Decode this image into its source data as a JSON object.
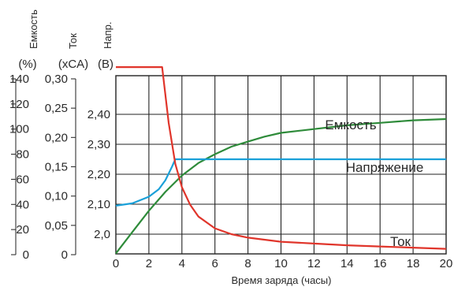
{
  "chart_data": {
    "type": "line",
    "xlabel": "Время заряда (часы)",
    "x_ticks": [
      0,
      2,
      4,
      6,
      8,
      10,
      12,
      14,
      16,
      18,
      20
    ],
    "xlim": [
      0,
      20
    ],
    "grid": true,
    "axes": {
      "capacity": {
        "title": "Емкость",
        "unit": "(%)",
        "ticks": [
          "0",
          "20",
          "40",
          "60",
          "80",
          "100",
          "120",
          "140"
        ],
        "range": [
          0,
          140
        ]
      },
      "current": {
        "title": "Ток",
        "unit": "(xCA)",
        "ticks": [
          "0",
          "0,05",
          "0,10",
          "0,15",
          "0,20",
          "0,25",
          "0,30"
        ],
        "range": [
          0,
          0.35
        ]
      },
      "voltage": {
        "title": "Напр.",
        "unit": "(В)",
        "ticks": [
          "2,0",
          "2,10",
          "2,20",
          "2,30",
          "2,40"
        ],
        "range": [
          1.93,
          2.46
        ]
      }
    },
    "series": [
      {
        "name": "Емкость",
        "axis": "capacity",
        "color": "#2e8b3a",
        "x": [
          0,
          1,
          2,
          3,
          4,
          5,
          6,
          7,
          8,
          9,
          10,
          12,
          14,
          16,
          18,
          20
        ],
        "y": [
          1,
          18,
          35,
          50,
          63,
          73,
          80,
          86,
          90,
          94,
          97,
          100,
          103,
          105,
          107,
          108
        ]
      },
      {
        "name": "Напряжение",
        "axis": "voltage",
        "color": "#1aa0d8",
        "x": [
          0,
          1,
          2,
          2.6,
          3,
          3.4,
          3.6,
          4,
          6,
          8,
          10,
          12,
          14,
          16,
          18,
          20
        ],
        "y": [
          2.095,
          2.103,
          2.125,
          2.15,
          2.18,
          2.225,
          2.25,
          2.25,
          2.25,
          2.25,
          2.25,
          2.25,
          2.25,
          2.25,
          2.25,
          2.25
        ]
      },
      {
        "name": "Ток",
        "axis": "current",
        "color": "#e0352b",
        "x": [
          0,
          2.8,
          3.2,
          3.6,
          4,
          4.5,
          5,
          6,
          7,
          8,
          10,
          12,
          14,
          16,
          18,
          20
        ],
        "y": [
          0.32,
          0.32,
          0.225,
          0.155,
          0.115,
          0.085,
          0.065,
          0.045,
          0.035,
          0.029,
          0.022,
          0.019,
          0.016,
          0.014,
          0.012,
          0.01
        ]
      }
    ]
  }
}
